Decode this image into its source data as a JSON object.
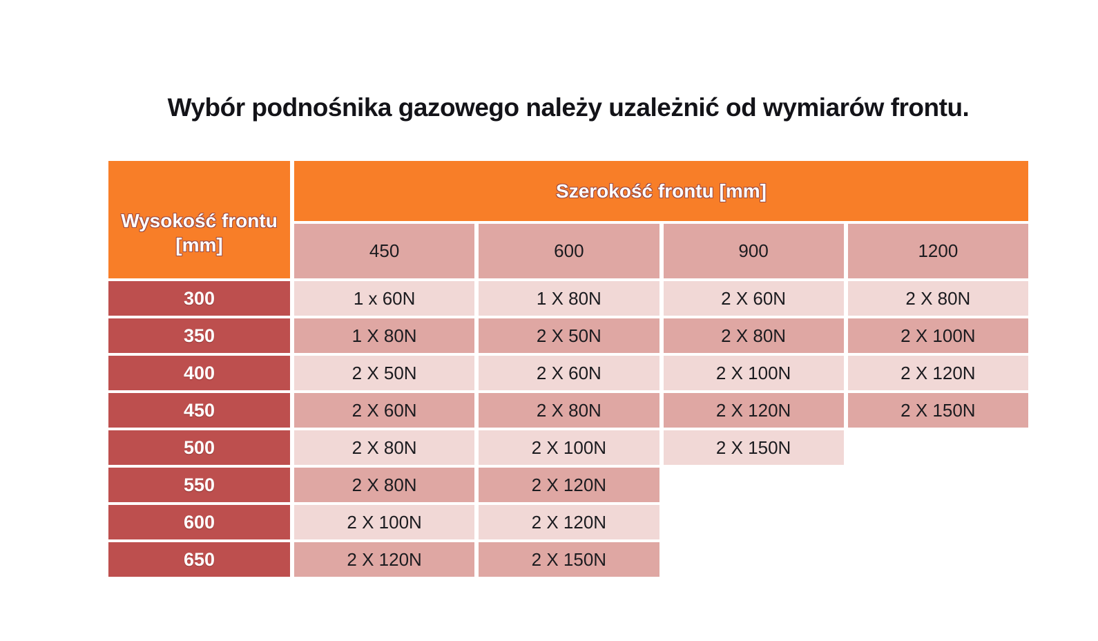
{
  "chart_data": {
    "type": "table",
    "title": "Wybór podnośnika gazowego należy uzależnić od wymiarów frontu.",
    "col_group_header": "Szerokość frontu [mm]",
    "row_group_header": "Wysokość frontu [mm]",
    "row_group_header_lines": [
      "Wysokość frontu",
      "[mm]"
    ],
    "columns": [
      "450",
      "600",
      "900",
      "1200"
    ],
    "row_headers": [
      "300",
      "350",
      "400",
      "450",
      "500",
      "550",
      "600",
      "650"
    ],
    "values": [
      [
        "1 x 60N",
        "1 X 80N",
        "2 X 60N",
        "2 X 80N"
      ],
      [
        "1 X 80N",
        "2 X 50N",
        "2 X 80N",
        "2 X 100N"
      ],
      [
        "2 X 50N",
        "2 X 60N",
        "2 X 100N",
        "2 X 120N"
      ],
      [
        "2 X 60N",
        "2 X 80N",
        "2 X 120N",
        "2 X 150N"
      ],
      [
        "2 X 80N",
        "2 X 100N",
        "2 X 150N",
        ""
      ],
      [
        "2 X 80N",
        "2 X 120N",
        "",
        ""
      ],
      [
        "2 X 100N",
        "2 X 120N",
        "",
        ""
      ],
      [
        "2 X 120N",
        "2 X 150N",
        "",
        ""
      ]
    ]
  },
  "colors": {
    "header_orange": "#F87E28",
    "row_header_red": "#BD4F4E",
    "cell_pink_dark": "#DFA7A3",
    "cell_pink_light": "#F1D8D6",
    "header_text": "#FFFFFF",
    "header_text_outline": "#9C4B43",
    "cell_text": "#1B1B1F",
    "title_text": "#131318",
    "background": "#FFFFFF"
  }
}
